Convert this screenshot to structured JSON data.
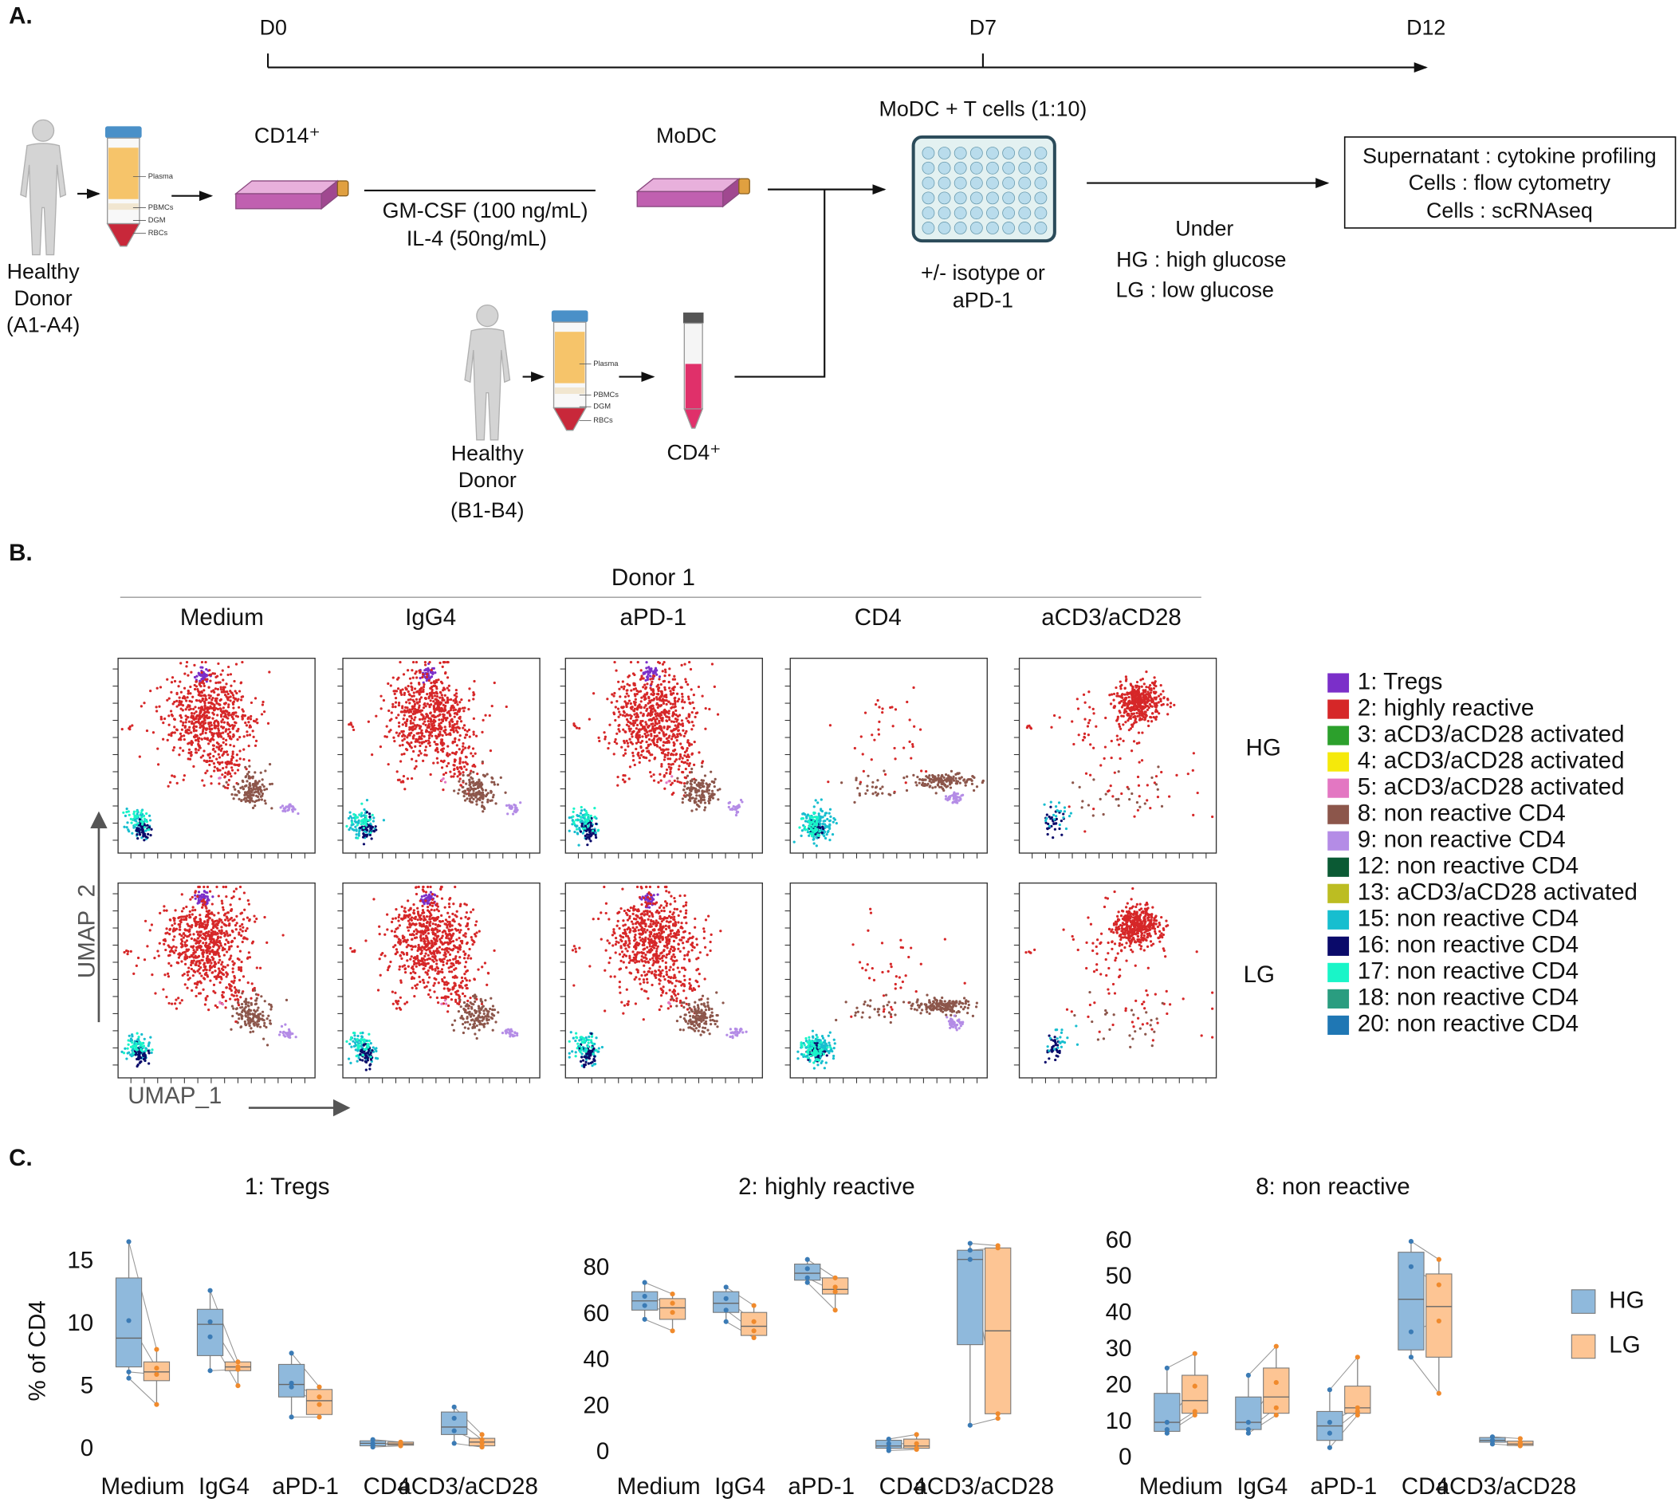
{
  "panel_a": {
    "label": "A.",
    "timeline": [
      "D0",
      "D7",
      "D12"
    ],
    "donor_a": [
      "Healthy",
      "Donor",
      "(A1-A4)"
    ],
    "donor_b": [
      "Healthy",
      "Donor",
      "(B1-B4)"
    ],
    "tube_labels": [
      "Plasma",
      "PBMCs",
      "DGM",
      "RBCs"
    ],
    "cd14": "CD14⁺",
    "modc": "MoDC",
    "cytokines": [
      "GM-CSF (100 ng/mL)",
      "IL-4 (50ng/mL)"
    ],
    "coculture": "MoDC + T cells (1:10)",
    "treatment": [
      "+/- isotype or",
      "aPD-1"
    ],
    "conditions": [
      "Under",
      "HG : high glucose",
      "LG : low glucose"
    ],
    "readouts": [
      "Supernatant : cytokine profiling",
      "Cells : flow cytometry",
      "Cells : scRNAseq"
    ],
    "cd4": "CD4⁺"
  },
  "panel_b": {
    "label": "B.",
    "donor": "Donor 1",
    "columns": [
      "Medium",
      "IgG4",
      "aPD-1",
      "CD4",
      "aCD3/aCD28"
    ],
    "rows": [
      "HG",
      "LG"
    ],
    "x_label": "UMAP_1",
    "y_label": "UMAP_2",
    "clusters": [
      {
        "name": "1: Tregs",
        "color": "#7b2fc9"
      },
      {
        "name": "2: highly reactive",
        "color": "#d62728"
      },
      {
        "name": "3: aCD3/aCD28 activated",
        "color": "#2ca02c"
      },
      {
        "name": "4: aCD3/aCD28 activated",
        "color": "#f5e90a"
      },
      {
        "name": "5: aCD3/aCD28 activated",
        "color": "#e377c2"
      },
      {
        "name": "8:  non reactive CD4",
        "color": "#8c564b"
      },
      {
        "name": "9:  non reactive CD4",
        "color": "#b48ce6"
      },
      {
        "name": "12: non reactive CD4",
        "color": "#0b5a34"
      },
      {
        "name": "13: aCD3/aCD28 activated",
        "color": "#bcbd22"
      },
      {
        "name": "15:  non reactive CD4",
        "color": "#17becf"
      },
      {
        "name": "16:  non reactive CD4",
        "color": "#0a0a6a"
      },
      {
        "name": "17:  non reactive CD4",
        "color": "#19f5c8"
      },
      {
        "name": "18:  non reactive CD4",
        "color": "#2a9d80"
      },
      {
        "name": "20:  non reactive CD4",
        "color": "#1f77b4"
      }
    ]
  },
  "panel_c": {
    "label": "C.",
    "legend": [
      {
        "name": "HG",
        "color": "#8fb9dc",
        "edge": "#3b7bb5"
      },
      {
        "name": "LG",
        "color": "#fdc594",
        "edge": "#f08a2c"
      }
    ]
  },
  "chart_data": [
    {
      "type": "box",
      "title": "1: Tregs",
      "y_label": "% of CD4",
      "categories": [
        "Medium",
        "IgG4",
        "aPD-1",
        "CD4",
        "aCD3/aCD28"
      ],
      "ylim": [
        -1,
        17.2
      ],
      "yticks": [
        0,
        5,
        10,
        15
      ],
      "series": [
        {
          "values": [
            {
              "min": 5.7,
              "q1": 6.6,
              "median": 8.9,
              "q3": 13.7,
              "max": 16.6,
              "points": [
                16.6,
                10.3,
                6.2,
                5.7
              ]
            },
            {
              "min": 6.3,
              "q1": 7.5,
              "median": 10.0,
              "q3": 11.2,
              "max": 12.7,
              "points": [
                12.7,
                10.2,
                6.3,
                9.0
              ]
            },
            {
              "min": 2.6,
              "q1": 4.2,
              "median": 5.2,
              "q3": 6.8,
              "max": 7.7,
              "points": [
                7.7,
                5.3,
                5.0,
                2.6
              ]
            },
            {
              "min": 0.2,
              "q1": 0.3,
              "median": 0.5,
              "q3": 0.7,
              "max": 0.8,
              "points": [
                0.8,
                0.5,
                0.4,
                0.2
              ]
            },
            {
              "min": 0.5,
              "q1": 1.2,
              "median": 1.8,
              "q3": 3.0,
              "max": 3.4,
              "points": [
                3.4,
                2.5,
                1.5,
                0.5
              ]
            }
          ]
        },
        {
          "values": [
            {
              "min": 3.6,
              "q1": 5.5,
              "median": 6.2,
              "q3": 7.0,
              "max": 8.0,
              "points": [
                8.0,
                6.5,
                6.0,
                3.6
              ]
            },
            {
              "min": 5.1,
              "q1": 6.3,
              "median": 6.6,
              "q3": 7.0,
              "max": 7.0,
              "points": [
                7.0,
                6.6,
                6.4,
                5.1
              ]
            },
            {
              "min": 2.6,
              "q1": 2.8,
              "median": 3.9,
              "q3": 4.8,
              "max": 5.0,
              "points": [
                5.0,
                4.2,
                3.6,
                2.6
              ]
            },
            {
              "min": 0.3,
              "q1": 0.35,
              "median": 0.45,
              "q3": 0.6,
              "max": 0.6,
              "points": [
                0.6,
                0.5,
                0.4,
                0.3
              ]
            },
            {
              "min": 0.2,
              "q1": 0.3,
              "median": 0.6,
              "q3": 0.9,
              "max": 1.2,
              "points": [
                1.2,
                0.8,
                0.5,
                0.2
              ]
            }
          ]
        }
      ]
    },
    {
      "type": "box",
      "title": "2: highly reactive",
      "categories": [
        "Medium",
        "IgG4",
        "aPD-1",
        "CD4",
        "aCD3/aCD28"
      ],
      "ylim": [
        -4,
        95
      ],
      "yticks": [
        0,
        20,
        40,
        60,
        80
      ],
      "series": [
        {
          "values": [
            {
              "min": 58,
              "q1": 62,
              "median": 66,
              "q3": 70,
              "max": 74,
              "points": [
                74,
                68,
                64,
                58
              ]
            },
            {
              "min": 57,
              "q1": 61,
              "median": 65,
              "q3": 70,
              "max": 72,
              "points": [
                72,
                67,
                62,
                57
              ]
            },
            {
              "min": 74,
              "q1": 75,
              "median": 78,
              "q3": 82,
              "max": 84,
              "points": [
                84,
                80,
                76,
                74
              ]
            },
            {
              "min": 1,
              "q1": 2,
              "median": 3,
              "q3": 5.5,
              "max": 6,
              "points": [
                6,
                4,
                2,
                1
              ]
            },
            {
              "min": 12,
              "q1": 47,
              "median": 84,
              "q3": 88,
              "max": 91,
              "points": [
                91,
                88,
                84,
                12
              ]
            }
          ]
        },
        {
          "values": [
            {
              "min": 53,
              "q1": 58,
              "median": 63,
              "q3": 67,
              "max": 69,
              "points": [
                69,
                65,
                61,
                53
              ]
            },
            {
              "min": 50,
              "q1": 51,
              "median": 55,
              "q3": 61,
              "max": 64,
              "points": [
                64,
                57,
                53,
                50
              ]
            },
            {
              "min": 62,
              "q1": 69,
              "median": 71,
              "q3": 76,
              "max": 76,
              "points": [
                76,
                72,
                70,
                62
              ]
            },
            {
              "min": 1.5,
              "q1": 2,
              "median": 3,
              "q3": 6,
              "max": 8,
              "points": [
                8,
                4,
                2,
                1.5
              ]
            },
            {
              "min": 15,
              "q1": 17,
              "median": 53,
              "q3": 89,
              "max": 90,
              "points": [
                90,
                89,
                17,
                15
              ]
            }
          ]
        }
      ]
    },
    {
      "type": "box",
      "title": "8: non reactive",
      "categories": [
        "Medium",
        "IgG4",
        "aPD-1",
        "CD4",
        "aCD3/aCD28"
      ],
      "ylim": [
        -1,
        62
      ],
      "yticks": [
        0,
        10,
        20,
        30,
        40,
        50,
        60
      ],
      "series": [
        {
          "values": [
            {
              "min": 7,
              "q1": 7.5,
              "median": 10,
              "q3": 18,
              "max": 25,
              "points": [
                25,
                10,
                8,
                7
              ]
            },
            {
              "min": 7,
              "q1": 8,
              "median": 10,
              "q3": 17,
              "max": 23,
              "points": [
                23,
                10,
                8,
                7
              ]
            },
            {
              "min": 3,
              "q1": 5,
              "median": 9,
              "q3": 13,
              "max": 19,
              "points": [
                19,
                10,
                7,
                3
              ]
            },
            {
              "min": 28,
              "q1": 30,
              "median": 44,
              "q3": 57,
              "max": 60,
              "points": [
                60,
                53,
                35,
                28
              ]
            },
            {
              "min": 4,
              "q1": 4.5,
              "median": 5,
              "q3": 5.8,
              "max": 6,
              "points": [
                6,
                5,
                5,
                4
              ]
            }
          ]
        },
        {
          "values": [
            {
              "min": 12,
              "q1": 12.5,
              "median": 16,
              "q3": 23,
              "max": 29,
              "points": [
                29,
                20,
                13,
                12
              ]
            },
            {
              "min": 12,
              "q1": 12.5,
              "median": 17,
              "q3": 25,
              "max": 31,
              "points": [
                31,
                21,
                14,
                12
              ]
            },
            {
              "min": 12,
              "q1": 12.5,
              "median": 14,
              "q3": 20,
              "max": 28,
              "points": [
                28,
                14,
                13,
                12
              ]
            },
            {
              "min": 18,
              "q1": 28,
              "median": 42,
              "q3": 51,
              "max": 55,
              "points": [
                55,
                48,
                38,
                18
              ]
            },
            {
              "min": 3.5,
              "q1": 3.6,
              "median": 4,
              "q3": 4.8,
              "max": 5.5,
              "points": [
                5.5,
                4.5,
                4,
                3.5
              ]
            }
          ]
        }
      ]
    }
  ]
}
